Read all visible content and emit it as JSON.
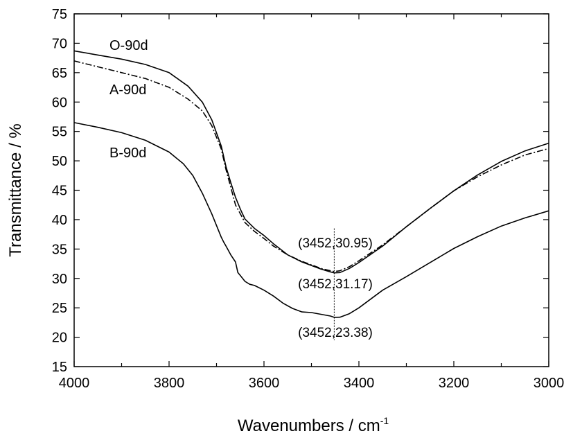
{
  "chart_data": {
    "type": "line",
    "xlabel": "Wavenumbers / cm",
    "xlabel_sup": "-1",
    "ylabel": "Transmittance / %",
    "xlim": [
      4000,
      3000
    ],
    "ylim": [
      15,
      75
    ],
    "x_reversed": true,
    "grid": false,
    "x_ticks": [
      "4000",
      "3800",
      "3600",
      "3400",
      "3200",
      "3000"
    ],
    "y_ticks": [
      "15",
      "20",
      "25",
      "30",
      "35",
      "40",
      "45",
      "50",
      "55",
      "60",
      "65",
      "70",
      "75"
    ],
    "series": [
      {
        "name": "O-90d",
        "style": "solid",
        "x": [
          4000,
          3950,
          3900,
          3850,
          3800,
          3760,
          3730,
          3710,
          3690,
          3680,
          3670,
          3660,
          3650,
          3640,
          3620,
          3600,
          3580,
          3550,
          3520,
          3500,
          3480,
          3460,
          3452,
          3440,
          3420,
          3400,
          3350,
          3300,
          3250,
          3200,
          3150,
          3100,
          3050,
          3000
        ],
        "y": [
          68.7,
          68.0,
          67.3,
          66.4,
          65.0,
          62.7,
          60.0,
          57.0,
          52.5,
          49.0,
          46.3,
          43.8,
          41.8,
          40.1,
          38.5,
          37.3,
          35.9,
          34.0,
          32.8,
          32.2,
          31.6,
          31.1,
          30.95,
          31.0,
          31.7,
          32.7,
          35.5,
          38.8,
          41.9,
          44.9,
          47.6,
          49.9,
          51.7,
          53.0
        ]
      },
      {
        "name": "A-90d",
        "style": "dashdot",
        "x": [
          4000,
          3950,
          3900,
          3850,
          3800,
          3760,
          3730,
          3710,
          3690,
          3680,
          3670,
          3660,
          3650,
          3640,
          3620,
          3600,
          3580,
          3550,
          3520,
          3500,
          3480,
          3460,
          3452,
          3440,
          3420,
          3400,
          3350,
          3300,
          3250,
          3200,
          3150,
          3100,
          3050,
          3000
        ],
        "y": [
          67.0,
          66.0,
          65.0,
          64.0,
          62.5,
          60.5,
          58.5,
          56.0,
          52.0,
          48.5,
          45.5,
          42.5,
          41.0,
          39.5,
          38.0,
          36.8,
          35.5,
          34.0,
          32.9,
          32.3,
          31.7,
          31.3,
          31.17,
          31.3,
          32.0,
          33.0,
          35.7,
          38.8,
          41.9,
          44.9,
          47.3,
          49.3,
          51.0,
          52.1
        ]
      },
      {
        "name": "B-90d",
        "style": "solid",
        "x": [
          4000,
          3950,
          3900,
          3850,
          3800,
          3770,
          3750,
          3730,
          3710,
          3700,
          3690,
          3685,
          3680,
          3670,
          3660,
          3655,
          3650,
          3640,
          3630,
          3620,
          3600,
          3580,
          3560,
          3540,
          3520,
          3500,
          3480,
          3460,
          3452,
          3440,
          3420,
          3400,
          3350,
          3300,
          3250,
          3200,
          3150,
          3100,
          3050,
          3000
        ],
        "y": [
          56.5,
          55.7,
          54.8,
          53.5,
          51.5,
          49.5,
          47.5,
          44.5,
          41.0,
          39.0,
          37.0,
          36.2,
          35.5,
          34.0,
          32.8,
          31.0,
          30.5,
          29.5,
          29.0,
          28.8,
          28.0,
          27.0,
          25.8,
          24.9,
          24.3,
          24.2,
          23.9,
          23.6,
          23.38,
          23.4,
          24.0,
          25.0,
          28.0,
          30.3,
          32.7,
          35.1,
          37.1,
          38.9,
          40.3,
          41.5
        ]
      }
    ],
    "annotations": [
      "(3452,30.95)",
      "(3452,31.17)",
      "(3452,23.38)"
    ],
    "marker_x": 3452
  }
}
